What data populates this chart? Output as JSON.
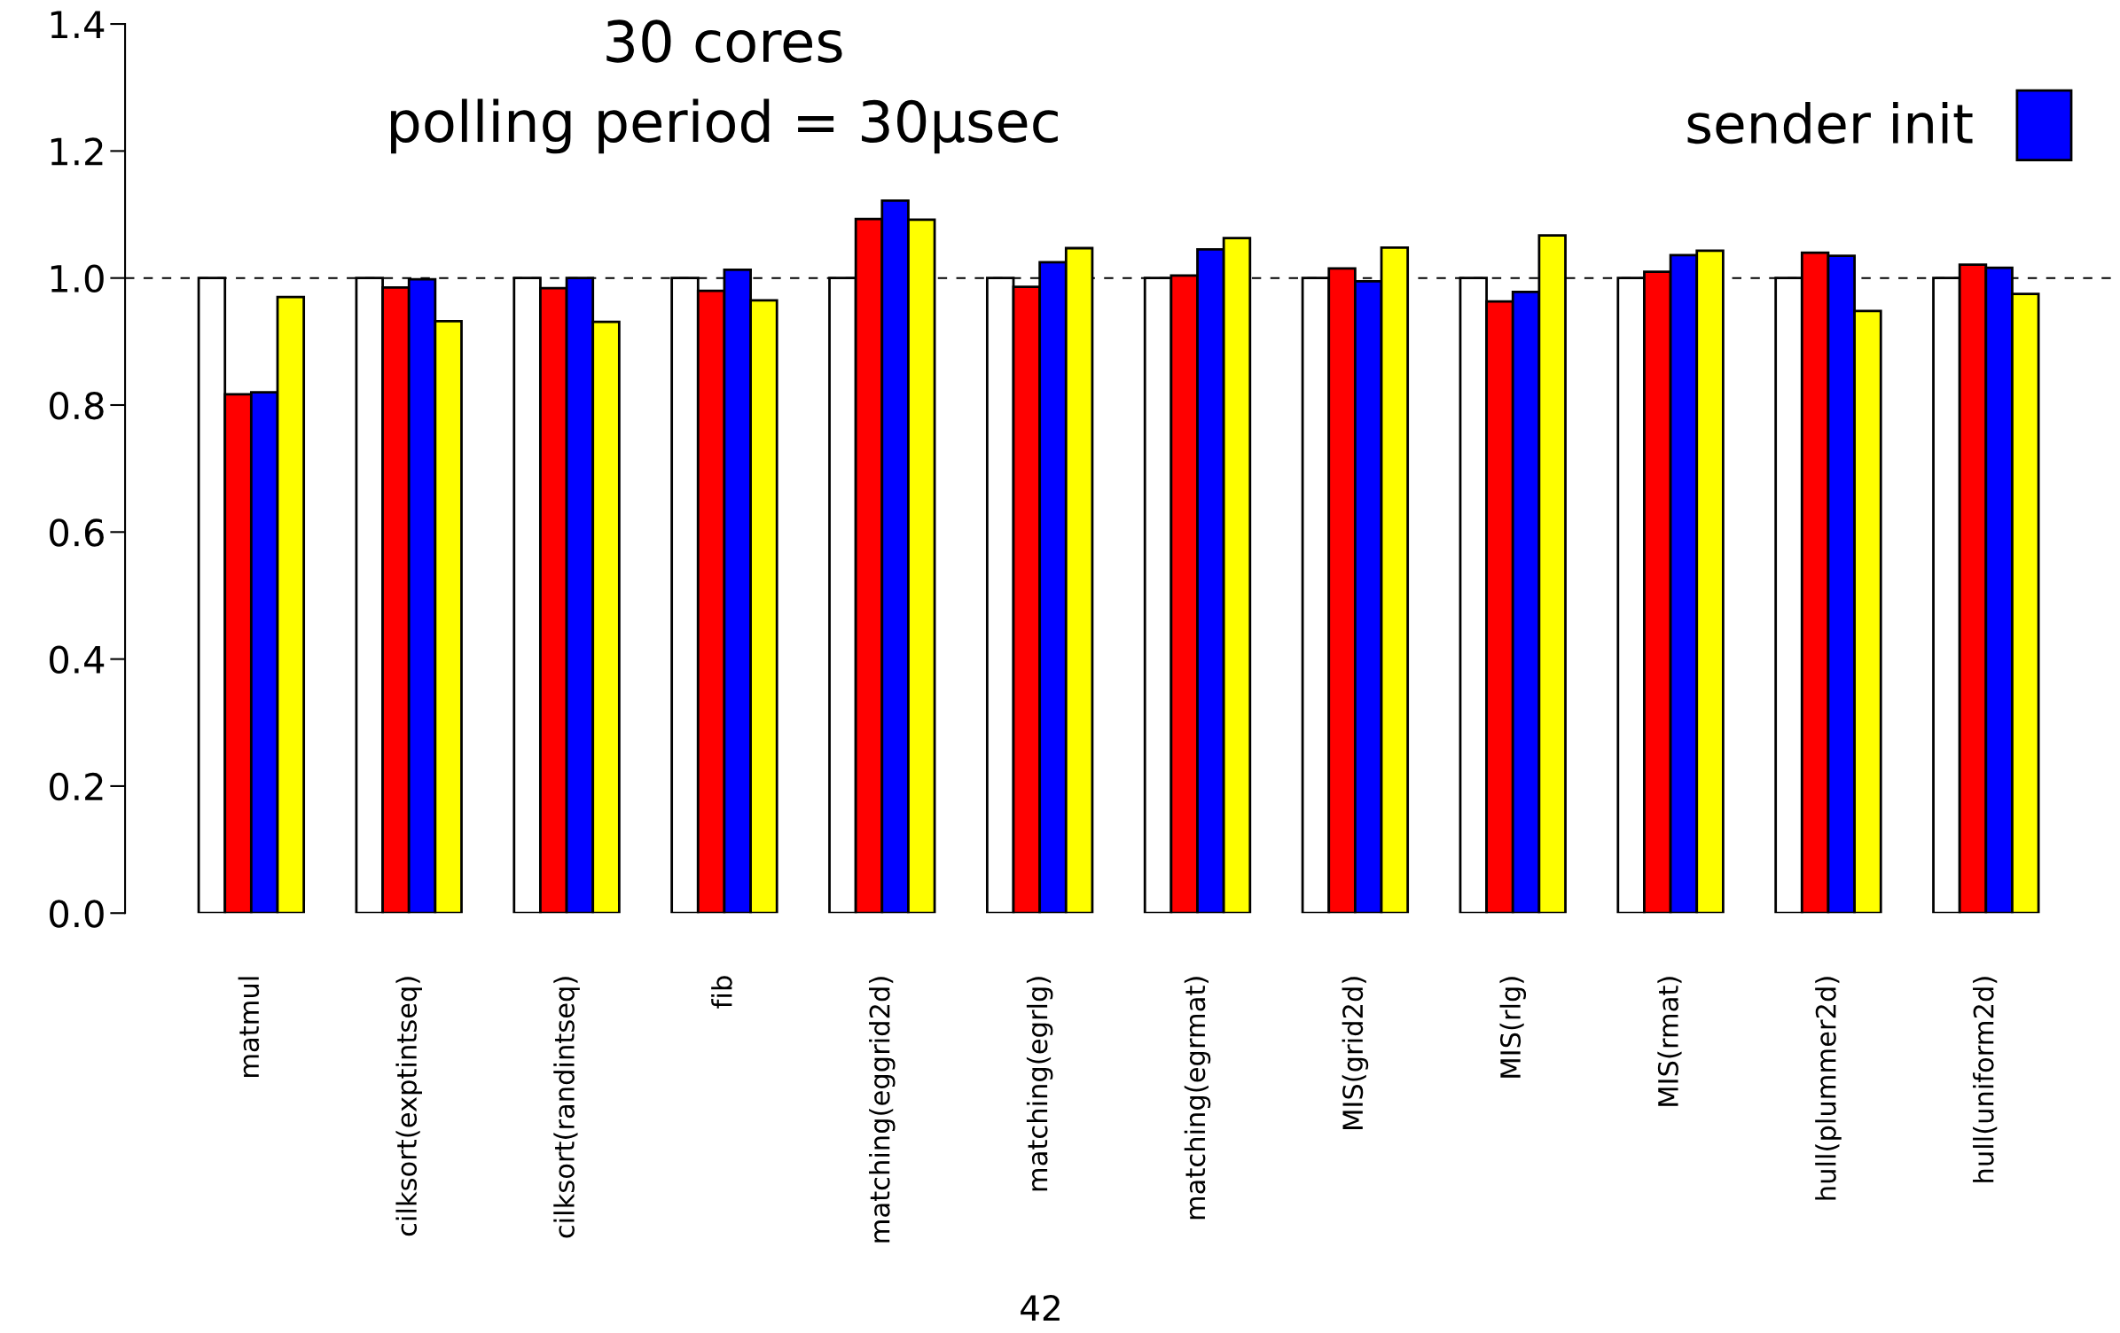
{
  "chart_data": {
    "type": "bar",
    "title": "30 cores",
    "subtitle": "polling period = 30μsec",
    "categories": [
      "matmul",
      "cilksort(exptintseq)",
      "cilksort(randintseq)",
      "fib",
      "matching(eggrid2d)",
      "matching(egrlg)",
      "matching(egrmat)",
      "MIS(grid2d)",
      "MIS(rlg)",
      "MIS(rmat)",
      "hull(plummer2d)",
      "hull(uniform2d)"
    ],
    "series": [
      {
        "color": "#ffffff",
        "values": [
          1,
          1,
          1,
          1,
          1,
          1,
          1,
          1,
          1,
          1,
          1,
          1
        ]
      },
      {
        "color": "#ff0000",
        "values": [
          0.817,
          0.985,
          0.984,
          0.98,
          1.093,
          0.986,
          1.004,
          1.015,
          0.963,
          1.01,
          1.04,
          1.021
        ]
      },
      {
        "name": "sender init",
        "color": "#0000ff",
        "values": [
          0.82,
          0.998,
          1.0,
          1.013,
          1.122,
          1.025,
          1.045,
          0.995,
          0.978,
          1.036,
          1.035,
          1.016
        ]
      },
      {
        "color": "#ffff00",
        "values": [
          0.97,
          0.932,
          0.931,
          0.965,
          1.092,
          1.047,
          1.063,
          1.048,
          1.067,
          1.043,
          0.948,
          0.975
        ]
      }
    ],
    "ylim": [
      0,
      1.4
    ],
    "yticks": [
      {
        "value": 0,
        "label": "0.0"
      },
      {
        "value": 0.2,
        "label": "0.2"
      },
      {
        "value": 0.4,
        "label": "0.4"
      },
      {
        "value": 0.6,
        "label": "0.6"
      },
      {
        "value": 0.8,
        "label": "0.8"
      },
      {
        "value": 1.0,
        "label": "1.0"
      },
      {
        "value": 1.2,
        "label": "1.2"
      },
      {
        "value": 1.4,
        "label": "1.4"
      }
    ],
    "ref_lines": [
      {
        "axis": "y",
        "value": 1.0,
        "line_style": "dashed",
        "color": "#000000"
      }
    ],
    "legend": "top right",
    "grid": false,
    "annotations": [
      "42"
    ]
  }
}
